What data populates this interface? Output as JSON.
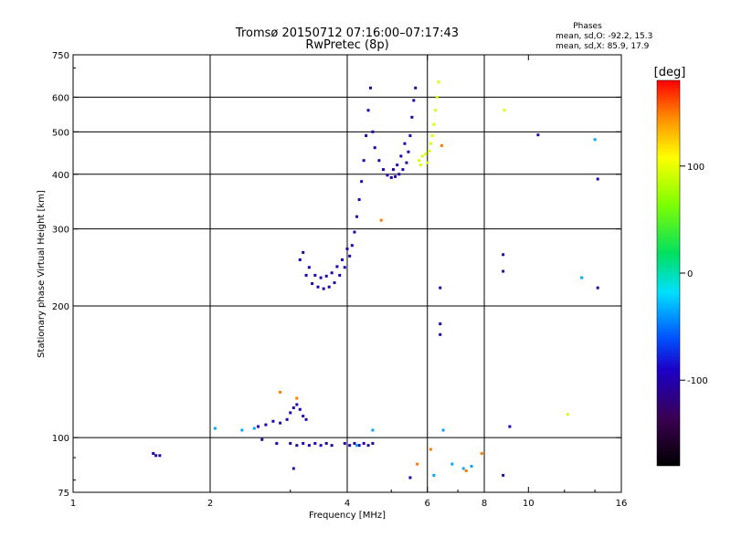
{
  "chart_data": {
    "type": "scatter",
    "title": "Tromsø 20150712 07:16:00–07:17:43",
    "subtitle": "RwPretec (8p)",
    "xlabel": "Frequency [MHz]",
    "ylabel": "Stationary phase Virtual Height [km]",
    "xscale": "log",
    "yscale": "log",
    "xlim": [
      1,
      16
    ],
    "ylim": [
      75,
      750
    ],
    "grid": true,
    "xticks": [
      1,
      2,
      4,
      6,
      8,
      10,
      16
    ],
    "yticks": [
      75,
      100,
      200,
      300,
      400,
      500,
      600,
      750
    ],
    "vgrid": [
      2,
      4,
      6,
      8
    ],
    "hgrid": [
      100,
      200,
      300,
      400,
      500,
      600
    ],
    "stats": {
      "heading": "Phases",
      "o_line": "mean, sd,O: -92.2, 15.3",
      "x_line": "mean, sd,X:  85.9, 17.9"
    },
    "colorbar": {
      "label": "[deg]",
      "range": [
        -180,
        180
      ],
      "ticks": [
        -100,
        0,
        100
      ],
      "colormap": "rainbow (black–violet–blue–cyan–green–yellow–red)"
    },
    "series": [
      {
        "color_deg": -100,
        "description_trace": "main_blue",
        "points": [
          [
            1.5,
            92
          ],
          [
            1.52,
            91
          ],
          [
            1.55,
            91
          ],
          [
            2.55,
            106
          ],
          [
            2.65,
            107
          ],
          [
            2.75,
            109
          ],
          [
            2.85,
            108
          ],
          [
            2.95,
            110
          ],
          [
            3.0,
            114
          ],
          [
            3.05,
            117
          ],
          [
            3.1,
            119
          ],
          [
            3.15,
            116
          ],
          [
            3.2,
            112
          ],
          [
            3.25,
            110
          ],
          [
            2.6,
            99
          ],
          [
            2.8,
            97
          ],
          [
            3.0,
            97
          ],
          [
            3.1,
            96
          ],
          [
            3.2,
            97
          ],
          [
            3.3,
            96
          ],
          [
            3.4,
            97
          ],
          [
            3.5,
            96
          ],
          [
            3.6,
            97
          ],
          [
            3.7,
            96
          ],
          [
            3.95,
            97
          ],
          [
            4.05,
            96
          ],
          [
            4.15,
            97
          ],
          [
            4.25,
            96
          ],
          [
            4.35,
            97
          ],
          [
            4.45,
            96
          ],
          [
            4.55,
            97
          ],
          [
            3.05,
            85
          ],
          [
            5.5,
            81
          ],
          [
            3.15,
            255
          ],
          [
            3.25,
            235
          ],
          [
            3.35,
            225
          ],
          [
            3.45,
            221
          ],
          [
            3.55,
            219
          ],
          [
            3.65,
            221
          ],
          [
            3.75,
            226
          ],
          [
            3.85,
            235
          ],
          [
            3.95,
            245
          ],
          [
            4.05,
            260
          ],
          [
            4.1,
            275
          ],
          [
            4.15,
            295
          ],
          [
            4.2,
            320
          ],
          [
            4.25,
            350
          ],
          [
            4.3,
            385
          ],
          [
            4.35,
            430
          ],
          [
            4.4,
            490
          ],
          [
            4.45,
            560
          ],
          [
            4.5,
            630
          ],
          [
            3.2,
            265
          ],
          [
            3.3,
            245
          ],
          [
            3.4,
            235
          ],
          [
            3.5,
            232
          ],
          [
            3.6,
            234
          ],
          [
            3.7,
            238
          ],
          [
            3.8,
            246
          ],
          [
            3.9,
            255
          ],
          [
            4.0,
            270
          ],
          [
            4.55,
            500
          ],
          [
            4.6,
            460
          ],
          [
            4.7,
            430
          ],
          [
            4.8,
            410
          ],
          [
            4.9,
            398
          ],
          [
            5.0,
            393
          ],
          [
            5.1,
            395
          ],
          [
            5.2,
            400
          ],
          [
            5.3,
            410
          ],
          [
            5.4,
            425
          ],
          [
            5.45,
            450
          ],
          [
            5.5,
            490
          ],
          [
            5.55,
            540
          ],
          [
            5.6,
            590
          ],
          [
            5.65,
            630
          ],
          [
            5.05,
            410
          ],
          [
            5.15,
            420
          ],
          [
            5.25,
            440
          ],
          [
            5.35,
            470
          ],
          [
            6.4,
            220
          ],
          [
            6.4,
            182
          ],
          [
            6.4,
            172
          ],
          [
            8.8,
            262
          ],
          [
            8.8,
            240
          ],
          [
            9.1,
            106
          ],
          [
            10.5,
            492
          ],
          [
            14.2,
            220
          ],
          [
            14.2,
            390
          ],
          [
            8.8,
            82
          ]
        ]
      },
      {
        "color_deg": 95,
        "description_trace": "yellow_x_mode",
        "points": [
          [
            5.75,
            430
          ],
          [
            5.85,
            440
          ],
          [
            5.95,
            445
          ],
          [
            6.05,
            452
          ],
          [
            6.1,
            470
          ],
          [
            6.15,
            490
          ],
          [
            6.2,
            520
          ],
          [
            6.25,
            560
          ],
          [
            6.3,
            600
          ],
          [
            6.35,
            650
          ],
          [
            5.8,
            420
          ],
          [
            6.0,
            425
          ],
          [
            8.85,
            560
          ],
          [
            12.2,
            113
          ]
        ]
      },
      {
        "color_deg": -35,
        "description_trace": "cyan_scatter",
        "points": [
          [
            2.05,
            105
          ],
          [
            2.35,
            104
          ],
          [
            2.5,
            105
          ],
          [
            4.2,
            96
          ],
          [
            4.55,
            104
          ],
          [
            6.5,
            104
          ],
          [
            6.8,
            87
          ],
          [
            7.2,
            85
          ],
          [
            7.5,
            86
          ],
          [
            13.1,
            232
          ],
          [
            14.0,
            480
          ],
          [
            6.2,
            82
          ]
        ]
      },
      {
        "color_deg": 150,
        "description_trace": "red_orange_scatter",
        "points": [
          [
            2.85,
            127
          ],
          [
            3.1,
            123
          ],
          [
            4.75,
            314
          ],
          [
            5.7,
            87
          ],
          [
            6.1,
            94
          ],
          [
            7.3,
            84
          ],
          [
            7.9,
            92
          ],
          [
            6.45,
            465
          ]
        ]
      }
    ]
  }
}
